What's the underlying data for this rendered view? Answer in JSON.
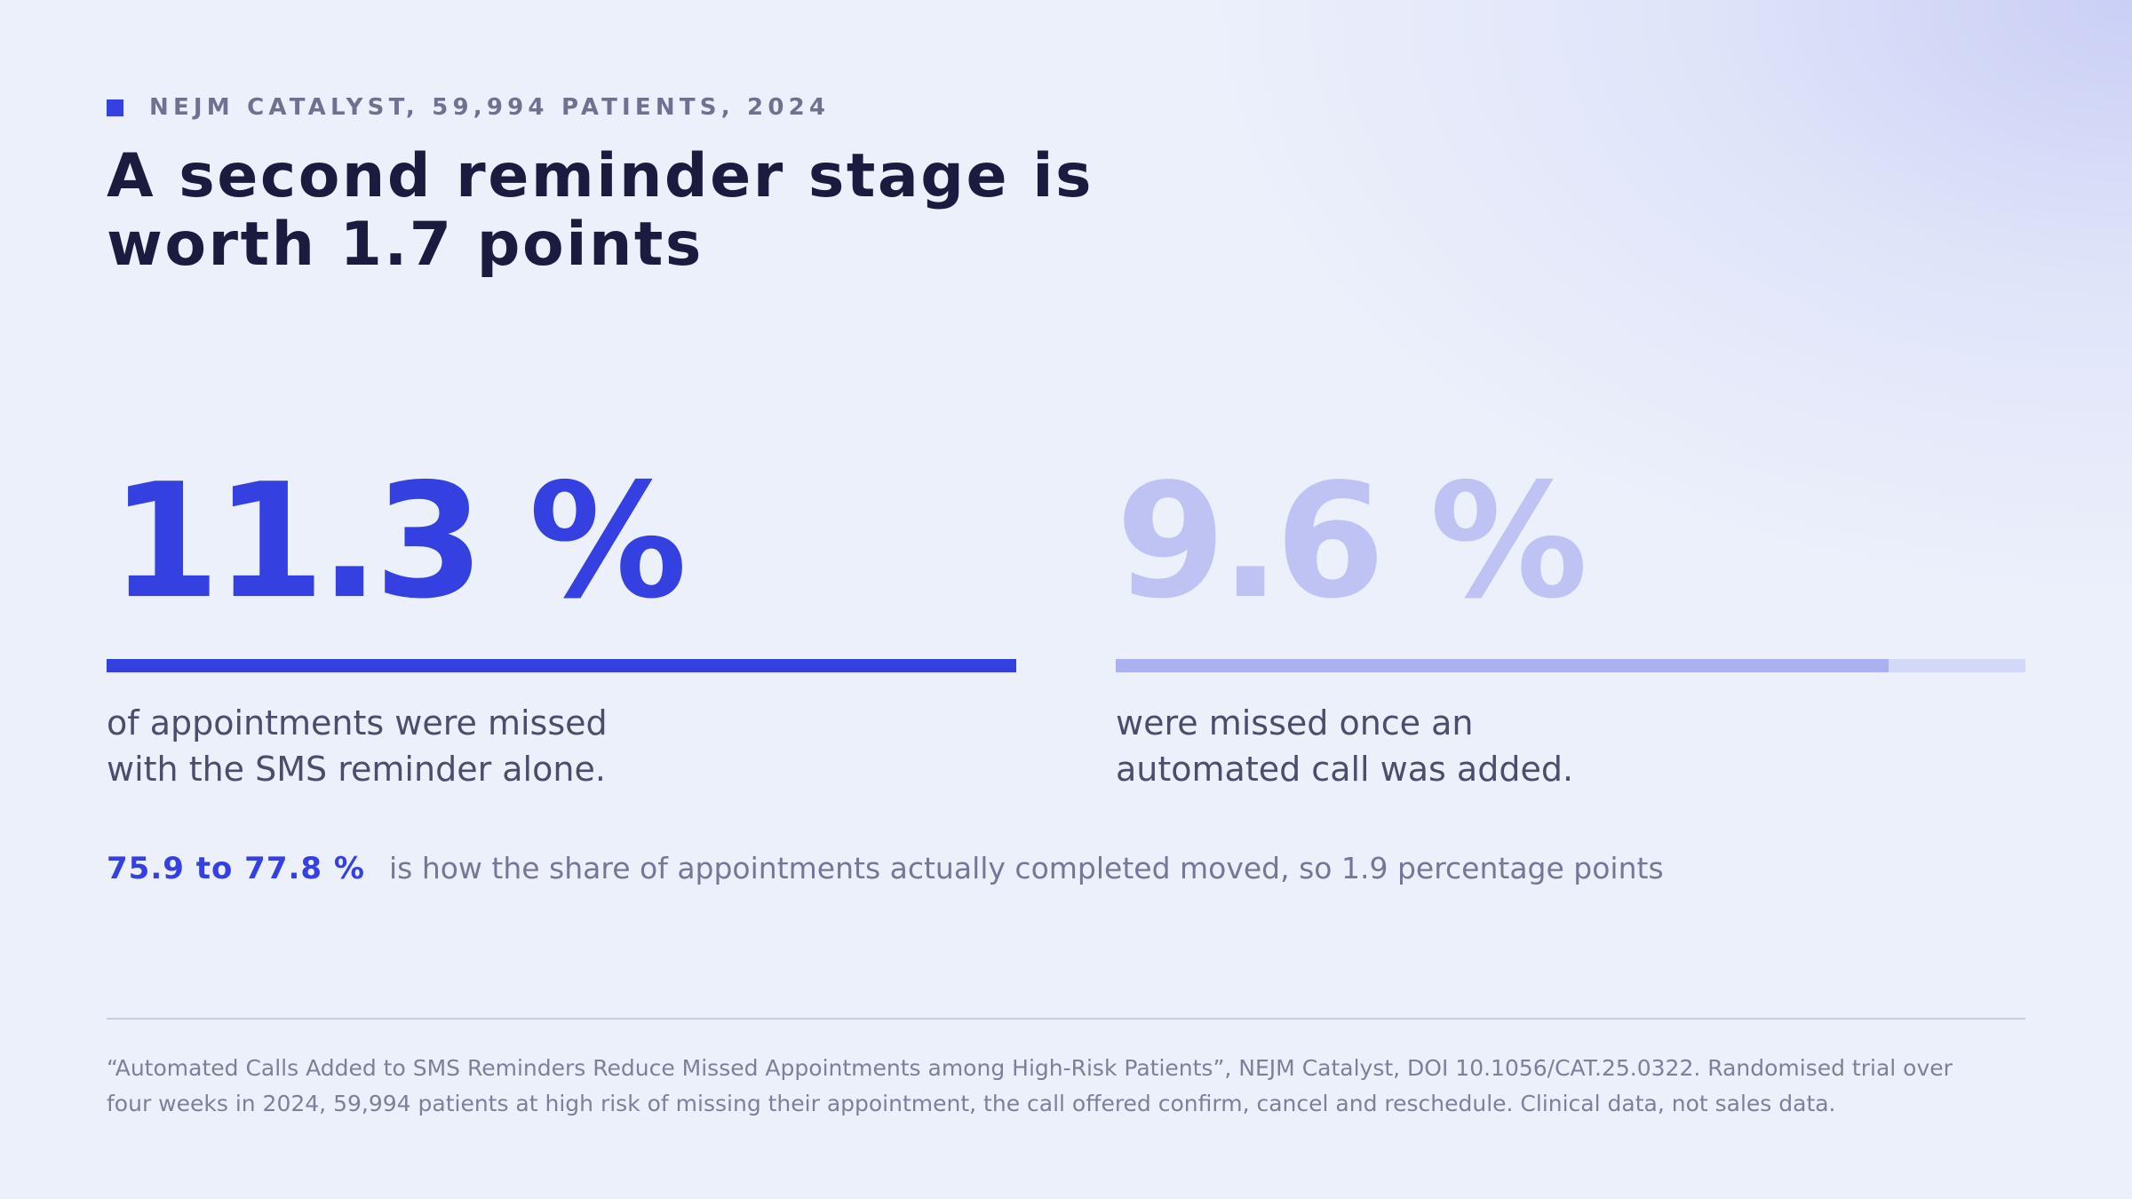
{
  "colors": {
    "accent": "#3440e0",
    "accent_muted": "#bfc3f4",
    "bar_primary": "#3440e0",
    "bar_primary_track": "#3440e0",
    "bar_secondary": "#abb1f0",
    "bar_secondary_track": "#d4d8f8"
  },
  "kicker": {
    "icon": "square-icon",
    "text": "NEJM CATALYST, 59,994 PATIENTS, 2024"
  },
  "headline": {
    "line1": "A second reminder stage is",
    "line2": "worth 1.7 points"
  },
  "stats": [
    {
      "value": "11.3 %",
      "bar_fill": 1.0,
      "caption_line1": "of appointments were missed",
      "caption_line2": "with the SMS reminder alone."
    },
    {
      "value": "9.6 %",
      "bar_fill": 0.85,
      "caption_line1": "were missed once an",
      "caption_line2": "automated call was added."
    }
  ],
  "completion": {
    "range": "75.9 to 77.8 %",
    "text": "is how the share of appointments actually completed moved, so 1.9 percentage points"
  },
  "source": {
    "line1": "“Automated Calls Added to SMS Reminders Reduce Missed Appointments among High-Risk Patients”, NEJM Catalyst, DOI 10.1056/CAT.25.0322. Randomised trial over",
    "line2": "four weeks in 2024, 59,994 patients at high risk of missing their appointment, the call offered confirm, cancel and reschedule. Clinical data, not sales data."
  }
}
